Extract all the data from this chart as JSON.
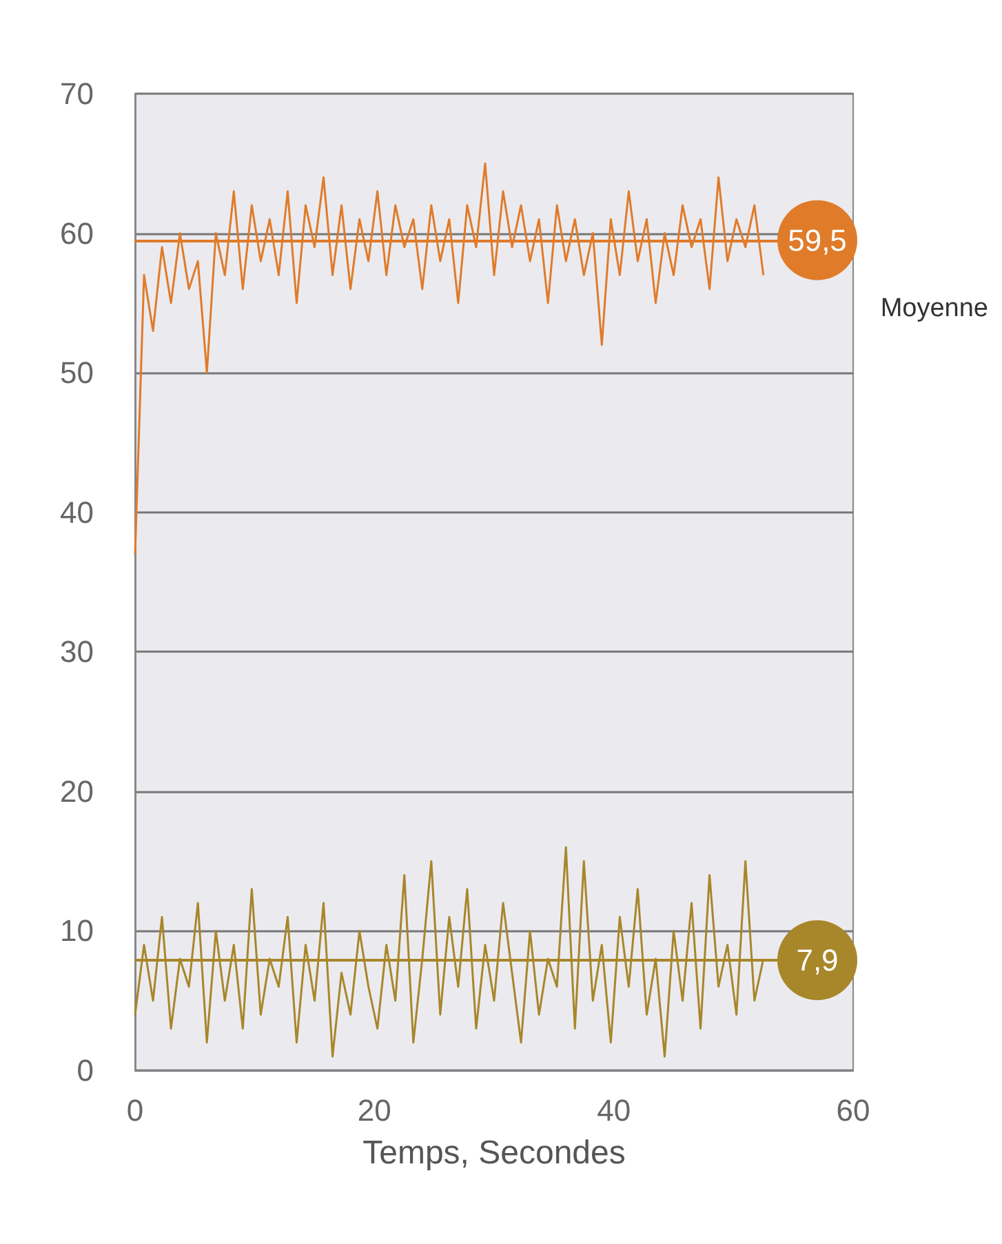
{
  "chart_data": {
    "type": "line",
    "xlabel": "Temps, Secondes",
    "x": [
      0,
      0.75,
      1.5,
      2.25,
      3,
      3.75,
      4.5,
      5.25,
      6,
      6.75,
      7.5,
      8.25,
      9,
      9.75,
      10.5,
      11.25,
      12,
      12.75,
      13.5,
      14.25,
      15,
      15.75,
      16.5,
      17.25,
      18,
      18.75,
      19.5,
      20.25,
      21,
      21.75,
      22.5,
      23.25,
      24,
      24.75,
      25.5,
      26.25,
      27,
      27.75,
      28.5,
      29.25,
      30,
      30.75,
      31.5,
      32.25,
      33,
      33.75,
      34.5,
      35.25,
      36,
      36.75,
      37.5,
      38.25,
      39,
      39.75,
      40.5,
      41.25,
      42,
      42.75,
      43.5,
      44.25,
      45,
      45.75,
      46.5,
      47.25,
      48,
      48.75,
      49.5,
      50.25,
      51,
      51.75,
      52.5
    ],
    "series": [
      {
        "color": "#e07b2a",
        "values": [
          37,
          57,
          53,
          59,
          55,
          60,
          56,
          58,
          50,
          60,
          57,
          63,
          56,
          62,
          58,
          61,
          57,
          63,
          55,
          62,
          59,
          64,
          57,
          62,
          56,
          61,
          58,
          63,
          57,
          62,
          59,
          61,
          56,
          62,
          58,
          61,
          55,
          62,
          59,
          65,
          57,
          63,
          59,
          62,
          58,
          61,
          55,
          62,
          58,
          61,
          57,
          60,
          52,
          61,
          57,
          63,
          58,
          61,
          55,
          60,
          57,
          62,
          59,
          61,
          56,
          64,
          58,
          61,
          59,
          62,
          57
        ]
      },
      {
        "color": "#a8862a",
        "values": [
          4,
          9,
          5,
          11,
          3,
          8,
          6,
          12,
          2,
          10,
          5,
          9,
          3,
          13,
          4,
          8,
          6,
          11,
          2,
          9,
          5,
          12,
          1,
          7,
          4,
          10,
          6,
          3,
          9,
          5,
          14,
          2,
          8,
          15,
          4,
          11,
          6,
          13,
          3,
          9,
          5,
          12,
          7,
          2,
          10,
          4,
          8,
          6,
          16,
          3,
          15,
          5,
          9,
          2,
          11,
          6,
          13,
          4,
          8,
          1,
          10,
          5,
          12,
          3,
          14,
          6,
          9,
          4,
          15,
          5,
          8
        ]
      }
    ],
    "ref_lines": [
      {
        "axis": "y",
        "value": 59.5,
        "label": "59,5",
        "color": "#e07b2a"
      },
      {
        "axis": "y",
        "value": 7.9,
        "label": "7,9",
        "color": "#a8862a"
      }
    ],
    "annotations": [
      "Moyenne"
    ],
    "xlim": [
      0,
      60
    ],
    "xticks": [
      0,
      20,
      40,
      60
    ],
    "ylim": [
      0,
      70
    ],
    "yticks": [
      0,
      10,
      20,
      30,
      40,
      50,
      60,
      70
    ],
    "grid": "y",
    "marker": "none",
    "line_style": "solid"
  }
}
